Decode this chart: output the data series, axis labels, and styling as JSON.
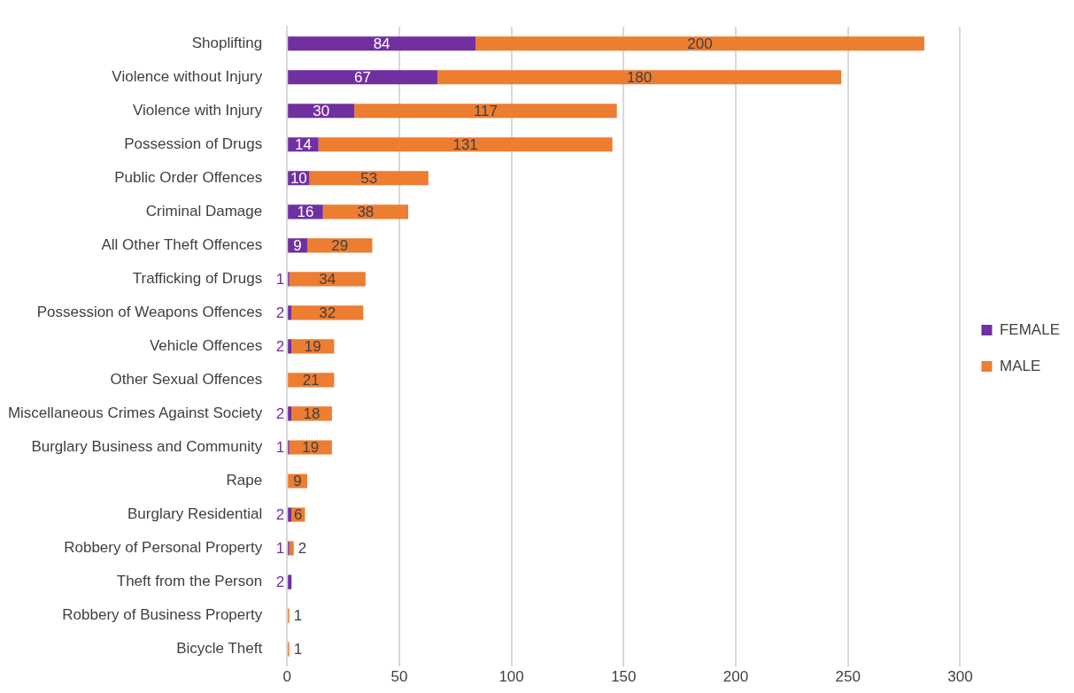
{
  "chart_data": {
    "type": "bar",
    "orientation": "horizontal",
    "stacked": true,
    "categories": [
      "Shoplifting",
      "Violence without Injury",
      "Violence with Injury",
      "Possession of Drugs",
      "Public Order Offences",
      "Criminal Damage",
      "All Other Theft Offences",
      "Trafficking of Drugs",
      "Possession of Weapons Offences",
      "Vehicle Offences",
      "Other Sexual Offences",
      "Miscellaneous Crimes Against Society",
      "Burglary Business and Community",
      "Rape",
      "Burglary Residential",
      "Robbery of Personal Property",
      "Theft from the Person",
      "Robbery of Business Property",
      "Bicycle Theft"
    ],
    "series": [
      {
        "name": "FEMALE",
        "color": "#7030a0",
        "values": [
          84,
          67,
          30,
          14,
          10,
          16,
          9,
          1,
          2,
          2,
          null,
          2,
          1,
          null,
          2,
          1,
          2,
          null,
          null
        ]
      },
      {
        "name": "MALE",
        "color": "#ed7d31",
        "values": [
          200,
          180,
          117,
          131,
          53,
          38,
          29,
          34,
          32,
          19,
          21,
          18,
          19,
          9,
          6,
          2,
          null,
          1,
          1
        ]
      }
    ],
    "xlim": [
      0,
      300
    ],
    "xticks": [
      0,
      50,
      100,
      150,
      200,
      250,
      300
    ],
    "grid": "x",
    "legend": "right",
    "data_labels": true
  }
}
